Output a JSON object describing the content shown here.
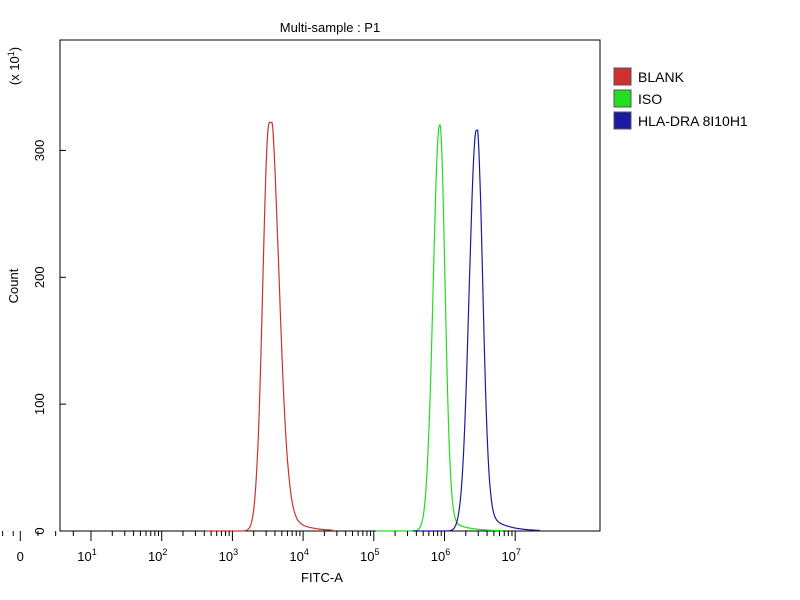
{
  "chart_data": {
    "type": "line",
    "title": "Multi-sample : P1",
    "xlabel": "FITC-A",
    "ylabel": "Count",
    "y_multiplier_label": "(x 10",
    "y_multiplier_exp": "1",
    "y_multiplier_close": ")",
    "x_scale": "log (biexponential)",
    "x_ticks": [
      {
        "base": "0",
        "exp": ""
      },
      {
        "base": "10",
        "exp": "1"
      },
      {
        "base": "10",
        "exp": "2"
      },
      {
        "base": "10",
        "exp": "3"
      },
      {
        "base": "10",
        "exp": "4"
      },
      {
        "base": "10",
        "exp": "5"
      },
      {
        "base": "10",
        "exp": "6"
      },
      {
        "base": "10",
        "exp": "7"
      }
    ],
    "y_ticks": [
      "0",
      "100",
      "200",
      "300"
    ],
    "ylim": [
      0,
      385
    ],
    "xlim_decades": [
      -0.5,
      7.1
    ],
    "grid": false,
    "legend_position": "right",
    "series": [
      {
        "name": "BLANK",
        "color": "#d03030",
        "peak_log10": 3.52,
        "peak_count": 322,
        "sigma_left": 0.09,
        "sigma_right": 0.13,
        "tail": 0.12
      },
      {
        "name": "ISO",
        "color": "#22dd22",
        "peak_log10": 5.93,
        "peak_count": 320,
        "sigma_left": 0.09,
        "sigma_right": 0.075,
        "tail": 0.05
      },
      {
        "name": "HLA-DRA 8I10H1",
        "color": "#1a1aa0",
        "peak_log10": 6.45,
        "peak_count": 316,
        "sigma_left": 0.1,
        "sigma_right": 0.085,
        "tail": 0.09
      }
    ]
  }
}
